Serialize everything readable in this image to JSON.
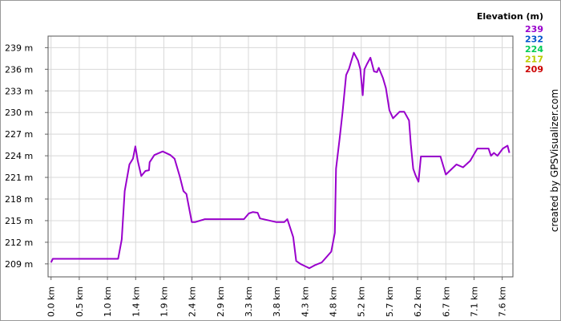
{
  "chart_data": {
    "type": "line",
    "credit": "created by GPSVisualizer.com",
    "x": [
      0,
      0.03,
      1.13,
      1.19,
      1.24,
      1.32,
      1.38,
      1.42,
      1.46,
      1.52,
      1.59,
      1.65,
      1.66,
      1.74,
      1.88,
      2.01,
      2.08,
      2.17,
      2.23,
      2.28,
      2.37,
      2.43,
      2.59,
      3.25,
      3.33,
      3.4,
      3.48,
      3.52,
      3.79,
      3.93,
      3.98,
      4.02,
      4.08,
      4.13,
      4.2,
      4.25,
      4.35,
      4.44,
      4.56,
      4.72,
      4.78,
      4.8,
      4.86,
      4.91,
      4.97,
      5.02,
      5.06,
      5.1,
      5.17,
      5.21,
      5.25,
      5.28,
      5.32,
      5.38,
      5.44,
      5.49,
      5.52,
      5.59,
      5.64,
      5.7,
      5.76,
      5.87,
      5.95,
      6.03,
      6.06,
      6.1,
      6.14,
      6.19,
      6.23,
      6.56,
      6.65,
      6.83,
      6.94,
      7.06,
      7.18,
      7.37,
      7.41,
      7.46,
      7.52,
      7.61,
      7.69,
      7.72
    ],
    "values": [
      209.2,
      209.7,
      209.7,
      212.4,
      219.1,
      222.8,
      223.6,
      225.3,
      223.3,
      221.2,
      221.9,
      222.0,
      223.1,
      224.1,
      224.6,
      224.1,
      223.6,
      221.1,
      219.1,
      218.7,
      214.8,
      214.8,
      215.2,
      215.2,
      216.0,
      216.2,
      216.1,
      215.3,
      214.8,
      214.8,
      215.2,
      214.2,
      212.7,
      209.4,
      209.0,
      208.8,
      208.4,
      208.8,
      209.2,
      210.7,
      213.3,
      222.2,
      226.3,
      230.0,
      235.2,
      236.1,
      237.2,
      238.3,
      237.2,
      236.0,
      232.4,
      236.0,
      236.7,
      237.6,
      235.7,
      235.6,
      236.2,
      234.8,
      233.4,
      230.3,
      229.2,
      230.1,
      230.1,
      228.9,
      225.6,
      222.2,
      221.3,
      220.4,
      223.9,
      223.9,
      221.4,
      222.8,
      222.4,
      223.3,
      225.0,
      225.0,
      224.0,
      224.4,
      224.0,
      225.0,
      225.4,
      224.4
    ],
    "xlim": [
      -0.05,
      7.78
    ],
    "ylim": [
      207.2,
      240.6
    ],
    "xticks": [
      {
        "value": 0,
        "label": "0.0 km"
      },
      {
        "value": 0.475,
        "label": "0.5 km"
      },
      {
        "value": 0.95,
        "label": "1.0 km"
      },
      {
        "value": 1.425,
        "label": "1.4 km"
      },
      {
        "value": 1.9,
        "label": "1.9 km"
      },
      {
        "value": 2.375,
        "label": "2.4 km"
      },
      {
        "value": 2.85,
        "label": "2.9 km"
      },
      {
        "value": 3.325,
        "label": "3.3 km"
      },
      {
        "value": 3.8,
        "label": "3.8 km"
      },
      {
        "value": 4.275,
        "label": "4.3 km"
      },
      {
        "value": 4.75,
        "label": "4.8 km"
      },
      {
        "value": 5.225,
        "label": "5.2 km"
      },
      {
        "value": 5.7,
        "label": "5.7 km"
      },
      {
        "value": 6.175,
        "label": "6.2 km"
      },
      {
        "value": 6.65,
        "label": "6.7 km"
      },
      {
        "value": 7.125,
        "label": "7.1 km"
      },
      {
        "value": 7.6,
        "label": "7.6 km"
      }
    ],
    "yticks": [
      {
        "value": 209,
        "label": "209 m"
      },
      {
        "value": 212,
        "label": "212 m"
      },
      {
        "value": 215,
        "label": "215 m"
      },
      {
        "value": 218,
        "label": "218 m"
      },
      {
        "value": 221,
        "label": "221 m"
      },
      {
        "value": 224,
        "label": "224 m"
      },
      {
        "value": 227,
        "label": "227 m"
      },
      {
        "value": 230,
        "label": "230 m"
      },
      {
        "value": 233,
        "label": "233 m"
      },
      {
        "value": 236,
        "label": "236 m"
      },
      {
        "value": 239,
        "label": "239 m"
      }
    ],
    "grid": true,
    "color_scale": {
      "title": "Elevation (m)",
      "stops": [
        {
          "value": 239,
          "color": "#9900cc"
        },
        {
          "value": 232,
          "color": "#0055cc"
        },
        {
          "value": 224,
          "color": "#00cc55"
        },
        {
          "value": 217,
          "color": "#bbcc00"
        },
        {
          "value": 209,
          "color": "#cc0000"
        }
      ]
    }
  }
}
